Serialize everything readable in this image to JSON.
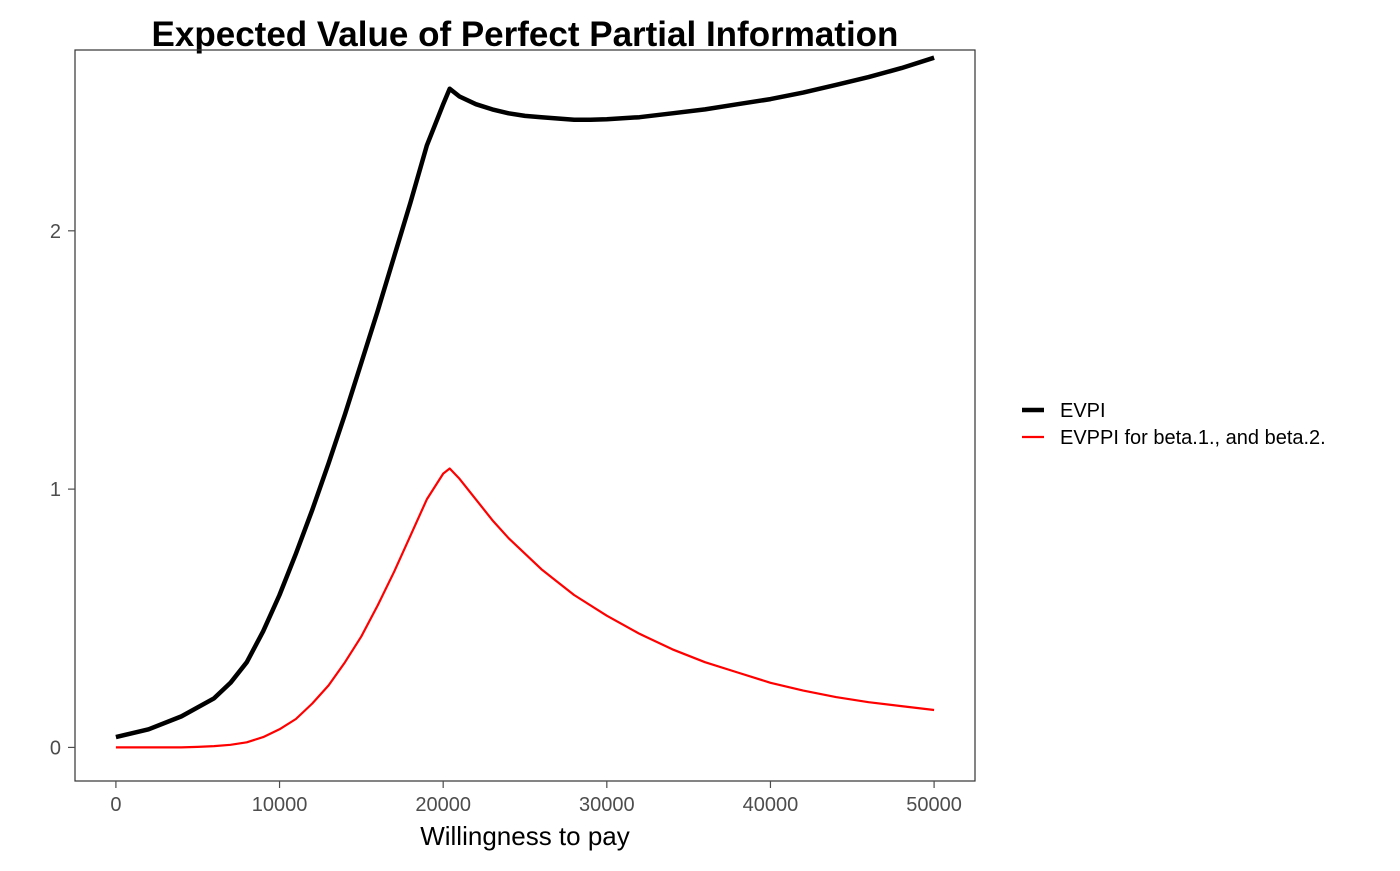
{
  "chart_data": {
    "type": "line",
    "title": "Expected Value of Perfect Partial Information",
    "xlabel": "Willingness to pay",
    "ylabel": "",
    "xlim": [
      -2500,
      52500
    ],
    "ylim": [
      -0.13,
      2.7
    ],
    "x_ticks": [
      "0",
      "10000",
      "20000",
      "30000",
      "40000",
      "50000"
    ],
    "y_ticks": [
      "0",
      "1",
      "2"
    ],
    "grid": false,
    "legend_position": "right",
    "colors": {
      "evpi": "#000000",
      "evppi": "#ff0000",
      "panel_border": "#333333",
      "tick": "#4d4d4d"
    },
    "series": [
      {
        "name": "EVPI",
        "color": "#000000",
        "x": [
          0,
          2000,
          4000,
          6000,
          7000,
          8000,
          9000,
          10000,
          11000,
          12000,
          13000,
          14000,
          15000,
          16000,
          17000,
          18000,
          19000,
          20000,
          20400,
          21000,
          22000,
          23000,
          24000,
          25000,
          26000,
          27000,
          28000,
          29000,
          30000,
          32000,
          34000,
          36000,
          38000,
          40000,
          42000,
          44000,
          46000,
          48000,
          50000
        ],
        "values": [
          0.04,
          0.07,
          0.12,
          0.19,
          0.25,
          0.33,
          0.45,
          0.59,
          0.75,
          0.92,
          1.1,
          1.29,
          1.49,
          1.69,
          1.9,
          2.11,
          2.33,
          2.49,
          2.55,
          2.52,
          2.49,
          2.47,
          2.455,
          2.445,
          2.44,
          2.435,
          2.43,
          2.43,
          2.432,
          2.44,
          2.455,
          2.47,
          2.49,
          2.51,
          2.535,
          2.565,
          2.595,
          2.63,
          2.67
        ]
      },
      {
        "name": "EVPPI for beta.1., and beta.2.",
        "color": "#ff0000",
        "x": [
          0,
          2000,
          4000,
          5000,
          6000,
          7000,
          8000,
          9000,
          10000,
          11000,
          12000,
          13000,
          14000,
          15000,
          16000,
          17000,
          18000,
          19000,
          20000,
          20400,
          21000,
          22000,
          23000,
          24000,
          25000,
          26000,
          27000,
          28000,
          30000,
          32000,
          34000,
          36000,
          38000,
          40000,
          42000,
          44000,
          46000,
          48000,
          50000
        ],
        "values": [
          0.0,
          0.0,
          0.0,
          0.002,
          0.005,
          0.01,
          0.02,
          0.04,
          0.07,
          0.11,
          0.17,
          0.24,
          0.33,
          0.43,
          0.55,
          0.68,
          0.82,
          0.96,
          1.06,
          1.08,
          1.04,
          0.96,
          0.88,
          0.81,
          0.75,
          0.69,
          0.64,
          0.59,
          0.51,
          0.44,
          0.38,
          0.33,
          0.29,
          0.25,
          0.22,
          0.195,
          0.175,
          0.16,
          0.145
        ]
      }
    ]
  }
}
